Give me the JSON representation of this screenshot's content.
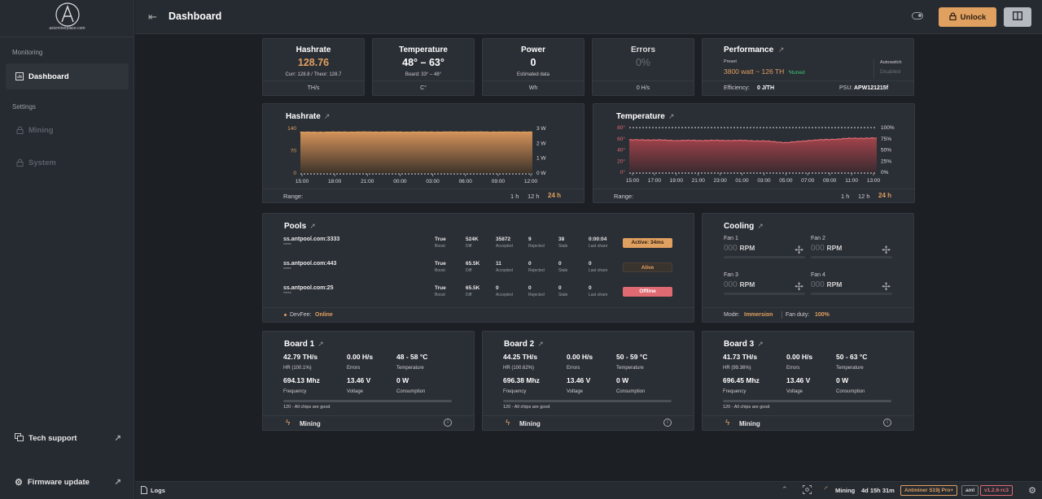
{
  "logo": {
    "text": "asicminerplace.com"
  },
  "sidebar": {
    "monitoring_label": "Monitoring",
    "dashboard_label": "Dashboard",
    "settings_label": "Settings",
    "mining_label": "Mining",
    "system_label": "System",
    "tech_support_label": "Tech support",
    "firmware_update_label": "Firmware update"
  },
  "header": {
    "title": "Dashboard",
    "unlock_label": "Unlock"
  },
  "stats": {
    "hashrate": {
      "label": "Hashrate",
      "value": "128.76",
      "sub": "Curr: 128.8 / Theor: 128.7",
      "unit": "TH/s"
    },
    "temperature": {
      "label": "Temperature",
      "value": "48° – 63°",
      "sub": "Board: 33° – 48°",
      "unit": "C°"
    },
    "power": {
      "label": "Power",
      "value": "0",
      "sub": "Estimated data",
      "unit": "Wh"
    },
    "errors": {
      "label": "Errors",
      "value": "0%",
      "unit": "0 H/s"
    }
  },
  "performance": {
    "title": "Performance",
    "preset_label": "Preset",
    "preset_value": "3800 watt ~ 126 TH",
    "tuned": "tuned",
    "autoswitch_label": "Autoswitch",
    "autoswitch_value": "Disabled",
    "efficiency_label": "Efficiency:",
    "efficiency_value": "0 J/TH",
    "psu_label": "PSU:",
    "psu_value": "APW121215f"
  },
  "hashrate_chart": {
    "title": "Hashrate",
    "y_left": [
      "140",
      "70",
      "0"
    ],
    "y_right": [
      "3 W",
      "2 W",
      "1 W",
      "0 W"
    ],
    "x": [
      "15:00",
      "18:00",
      "21:00",
      "00:00",
      "03:00",
      "06:00",
      "09:00",
      "12:00"
    ],
    "range_label": "Range:",
    "ranges": [
      "1 h",
      "12 h",
      "24 h"
    ]
  },
  "temperature_chart": {
    "title": "Temperature",
    "y_left": [
      "80°",
      "60°",
      "40°",
      "20°",
      "0°"
    ],
    "y_right": [
      "100%",
      "75%",
      "50%",
      "25%",
      "0%"
    ],
    "x": [
      "15:00",
      "17:00",
      "19:00",
      "21:00",
      "23:00",
      "01:00",
      "03:00",
      "05:00",
      "07:00",
      "09:00",
      "11:00",
      "13:00"
    ],
    "range_label": "Range:",
    "ranges": [
      "1 h",
      "12 h",
      "24 h"
    ]
  },
  "chart_data": [
    {
      "type": "area",
      "title": "Hashrate",
      "x": [
        "15:00",
        "18:00",
        "21:00",
        "00:00",
        "03:00",
        "06:00",
        "09:00",
        "12:00"
      ],
      "series": [
        {
          "values": [
            128,
            128.5,
            128.7,
            128.5,
            128.6,
            128.8,
            128.6,
            128.7
          ]
        }
      ],
      "ylim": [
        0,
        140
      ]
    },
    {
      "type": "area",
      "title": "Temperature",
      "x": [
        "15:00",
        "17:00",
        "19:00",
        "21:00",
        "23:00",
        "01:00",
        "03:00",
        "05:00",
        "07:00",
        "09:00",
        "11:00",
        "13:00"
      ],
      "series": [
        {
          "values": [
            58,
            58,
            57,
            57,
            57,
            57,
            56,
            53,
            57,
            59,
            61,
            61
          ]
        }
      ],
      "ylim": [
        0,
        80
      ]
    }
  ],
  "pools": {
    "title": "Pools",
    "col_boost": "Boost",
    "col_diff": "Diff",
    "col_accepted": "Accepted",
    "col_rejected": "Rejected",
    "col_stale": "Stale",
    "col_last": "Last share",
    "rows": [
      {
        "url": "ss.antpool.com:3333",
        "pass": "*****",
        "boost": "True",
        "diff": "524K",
        "accepted": "35872",
        "rejected": "9",
        "stale": "38",
        "last": "0:00:04",
        "status": "Active: 34ms"
      },
      {
        "url": "ss.antpool.com:443",
        "pass": "*****",
        "boost": "True",
        "diff": "65.5K",
        "accepted": "11",
        "rejected": "0",
        "stale": "0",
        "last": "0",
        "status": "Alive"
      },
      {
        "url": "ss.antpool.com:25",
        "pass": "*****",
        "boost": "True",
        "diff": "65.5K",
        "accepted": "0",
        "rejected": "0",
        "stale": "0",
        "last": "0",
        "status": "Offline"
      }
    ],
    "devfee_label": "DevFee:",
    "devfee_value": "Online"
  },
  "cooling": {
    "title": "Cooling",
    "fans": [
      {
        "label": "Fan 1",
        "value": "000",
        "unit": "RPM"
      },
      {
        "label": "Fan 2",
        "value": "000",
        "unit": "RPM"
      },
      {
        "label": "Fan 3",
        "value": "000",
        "unit": "RPM"
      },
      {
        "label": "Fan 4",
        "value": "000",
        "unit": "RPM"
      }
    ],
    "mode_label": "Mode:",
    "mode_value": "Immersion",
    "duty_label": "Fan duty:",
    "duty_value": "100%"
  },
  "boards": [
    {
      "title": "Board 1",
      "hr": "42.79 TH/s",
      "hr_pct": "HR (100.1%)",
      "err": "0.00 H/s",
      "temp": "48 - 58 °C",
      "freq": "694.13 Mhz",
      "volt": "13.46 V",
      "cons": "0 W",
      "chips": "120 - All chips are good",
      "status": "Mining"
    },
    {
      "title": "Board 2",
      "hr": "44.25 TH/s",
      "hr_pct": "HR (100.62%)",
      "err": "0.00 H/s",
      "temp": "50 - 59 °C",
      "freq": "696.38 Mhz",
      "volt": "13.46 V",
      "cons": "0 W",
      "chips": "120 - All chips are good",
      "status": "Mining"
    },
    {
      "title": "Board 3",
      "hr": "41.73 TH/s",
      "hr_pct": "HR (99.36%)",
      "err": "0.00 H/s",
      "temp": "50 - 63 °C",
      "freq": "696.45 Mhz",
      "volt": "13.46 V",
      "cons": "0 W",
      "chips": "120 - All chips are good",
      "status": "Mining"
    }
  ],
  "board_labels": {
    "errors": "Errors",
    "temperature": "Temperature",
    "frequency": "Frequency",
    "voltage": "Voltage",
    "consumption": "Consumption"
  },
  "statusbar": {
    "logs": "Logs",
    "mining": "Mining",
    "uptime": "4d 15h 31m",
    "model": "Antminer S19j Pro+",
    "platform": "aml",
    "version": "v1.2.6-rc3"
  },
  "colors": {
    "accent": "#e0a060",
    "danger": "#e06a72",
    "success": "#3cc870"
  }
}
